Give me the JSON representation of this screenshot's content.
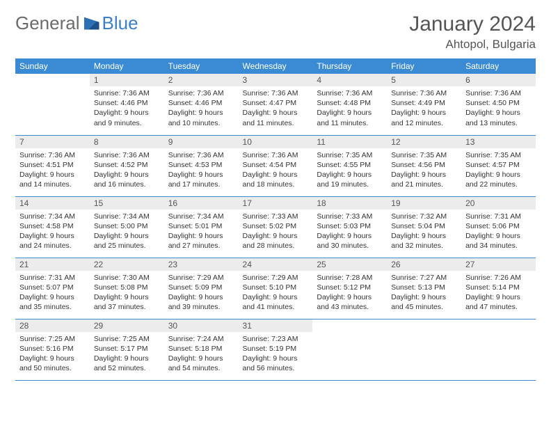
{
  "logo": {
    "general": "General",
    "blue": "Blue"
  },
  "title": {
    "month": "January 2024",
    "location": "Ahtopol, Bulgaria"
  },
  "colors": {
    "header_bg": "#3b8bd4",
    "header_fg": "#ffffff",
    "daynum_bg": "#ececec",
    "rule": "#3b8bd4",
    "logo_gray": "#6b6b6b",
    "logo_blue": "#3b7fc4"
  },
  "weekdays": [
    "Sunday",
    "Monday",
    "Tuesday",
    "Wednesday",
    "Thursday",
    "Friday",
    "Saturday"
  ],
  "weeks": [
    [
      null,
      {
        "n": "1",
        "sr": "Sunrise: 7:36 AM",
        "ss": "Sunset: 4:46 PM",
        "d1": "Daylight: 9 hours",
        "d2": "and 9 minutes."
      },
      {
        "n": "2",
        "sr": "Sunrise: 7:36 AM",
        "ss": "Sunset: 4:46 PM",
        "d1": "Daylight: 9 hours",
        "d2": "and 10 minutes."
      },
      {
        "n": "3",
        "sr": "Sunrise: 7:36 AM",
        "ss": "Sunset: 4:47 PM",
        "d1": "Daylight: 9 hours",
        "d2": "and 11 minutes."
      },
      {
        "n": "4",
        "sr": "Sunrise: 7:36 AM",
        "ss": "Sunset: 4:48 PM",
        "d1": "Daylight: 9 hours",
        "d2": "and 11 minutes."
      },
      {
        "n": "5",
        "sr": "Sunrise: 7:36 AM",
        "ss": "Sunset: 4:49 PM",
        "d1": "Daylight: 9 hours",
        "d2": "and 12 minutes."
      },
      {
        "n": "6",
        "sr": "Sunrise: 7:36 AM",
        "ss": "Sunset: 4:50 PM",
        "d1": "Daylight: 9 hours",
        "d2": "and 13 minutes."
      }
    ],
    [
      {
        "n": "7",
        "sr": "Sunrise: 7:36 AM",
        "ss": "Sunset: 4:51 PM",
        "d1": "Daylight: 9 hours",
        "d2": "and 14 minutes."
      },
      {
        "n": "8",
        "sr": "Sunrise: 7:36 AM",
        "ss": "Sunset: 4:52 PM",
        "d1": "Daylight: 9 hours",
        "d2": "and 16 minutes."
      },
      {
        "n": "9",
        "sr": "Sunrise: 7:36 AM",
        "ss": "Sunset: 4:53 PM",
        "d1": "Daylight: 9 hours",
        "d2": "and 17 minutes."
      },
      {
        "n": "10",
        "sr": "Sunrise: 7:36 AM",
        "ss": "Sunset: 4:54 PM",
        "d1": "Daylight: 9 hours",
        "d2": "and 18 minutes."
      },
      {
        "n": "11",
        "sr": "Sunrise: 7:35 AM",
        "ss": "Sunset: 4:55 PM",
        "d1": "Daylight: 9 hours",
        "d2": "and 19 minutes."
      },
      {
        "n": "12",
        "sr": "Sunrise: 7:35 AM",
        "ss": "Sunset: 4:56 PM",
        "d1": "Daylight: 9 hours",
        "d2": "and 21 minutes."
      },
      {
        "n": "13",
        "sr": "Sunrise: 7:35 AM",
        "ss": "Sunset: 4:57 PM",
        "d1": "Daylight: 9 hours",
        "d2": "and 22 minutes."
      }
    ],
    [
      {
        "n": "14",
        "sr": "Sunrise: 7:34 AM",
        "ss": "Sunset: 4:58 PM",
        "d1": "Daylight: 9 hours",
        "d2": "and 24 minutes."
      },
      {
        "n": "15",
        "sr": "Sunrise: 7:34 AM",
        "ss": "Sunset: 5:00 PM",
        "d1": "Daylight: 9 hours",
        "d2": "and 25 minutes."
      },
      {
        "n": "16",
        "sr": "Sunrise: 7:34 AM",
        "ss": "Sunset: 5:01 PM",
        "d1": "Daylight: 9 hours",
        "d2": "and 27 minutes."
      },
      {
        "n": "17",
        "sr": "Sunrise: 7:33 AM",
        "ss": "Sunset: 5:02 PM",
        "d1": "Daylight: 9 hours",
        "d2": "and 28 minutes."
      },
      {
        "n": "18",
        "sr": "Sunrise: 7:33 AM",
        "ss": "Sunset: 5:03 PM",
        "d1": "Daylight: 9 hours",
        "d2": "and 30 minutes."
      },
      {
        "n": "19",
        "sr": "Sunrise: 7:32 AM",
        "ss": "Sunset: 5:04 PM",
        "d1": "Daylight: 9 hours",
        "d2": "and 32 minutes."
      },
      {
        "n": "20",
        "sr": "Sunrise: 7:31 AM",
        "ss": "Sunset: 5:06 PM",
        "d1": "Daylight: 9 hours",
        "d2": "and 34 minutes."
      }
    ],
    [
      {
        "n": "21",
        "sr": "Sunrise: 7:31 AM",
        "ss": "Sunset: 5:07 PM",
        "d1": "Daylight: 9 hours",
        "d2": "and 35 minutes."
      },
      {
        "n": "22",
        "sr": "Sunrise: 7:30 AM",
        "ss": "Sunset: 5:08 PM",
        "d1": "Daylight: 9 hours",
        "d2": "and 37 minutes."
      },
      {
        "n": "23",
        "sr": "Sunrise: 7:29 AM",
        "ss": "Sunset: 5:09 PM",
        "d1": "Daylight: 9 hours",
        "d2": "and 39 minutes."
      },
      {
        "n": "24",
        "sr": "Sunrise: 7:29 AM",
        "ss": "Sunset: 5:10 PM",
        "d1": "Daylight: 9 hours",
        "d2": "and 41 minutes."
      },
      {
        "n": "25",
        "sr": "Sunrise: 7:28 AM",
        "ss": "Sunset: 5:12 PM",
        "d1": "Daylight: 9 hours",
        "d2": "and 43 minutes."
      },
      {
        "n": "26",
        "sr": "Sunrise: 7:27 AM",
        "ss": "Sunset: 5:13 PM",
        "d1": "Daylight: 9 hours",
        "d2": "and 45 minutes."
      },
      {
        "n": "27",
        "sr": "Sunrise: 7:26 AM",
        "ss": "Sunset: 5:14 PM",
        "d1": "Daylight: 9 hours",
        "d2": "and 47 minutes."
      }
    ],
    [
      {
        "n": "28",
        "sr": "Sunrise: 7:25 AM",
        "ss": "Sunset: 5:16 PM",
        "d1": "Daylight: 9 hours",
        "d2": "and 50 minutes."
      },
      {
        "n": "29",
        "sr": "Sunrise: 7:25 AM",
        "ss": "Sunset: 5:17 PM",
        "d1": "Daylight: 9 hours",
        "d2": "and 52 minutes."
      },
      {
        "n": "30",
        "sr": "Sunrise: 7:24 AM",
        "ss": "Sunset: 5:18 PM",
        "d1": "Daylight: 9 hours",
        "d2": "and 54 minutes."
      },
      {
        "n": "31",
        "sr": "Sunrise: 7:23 AM",
        "ss": "Sunset: 5:19 PM",
        "d1": "Daylight: 9 hours",
        "d2": "and 56 minutes."
      },
      null,
      null,
      null
    ]
  ]
}
